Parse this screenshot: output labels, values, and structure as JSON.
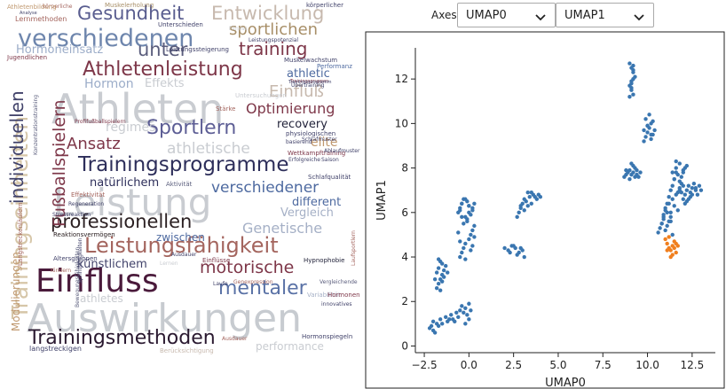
{
  "word_cloud": {
    "words": [
      "Auswirkungen",
      "Athleten",
      "Leistung",
      "Einfluss",
      "Trainingseinheiten",
      "verschiedenen",
      "Trainingsprogramme",
      "Leistungsfähigkeit",
      "Trainingsmethoden",
      "professionellen",
      "Sportlern",
      "Athletenleistung",
      "Gesundheit",
      "Entwicklung",
      "Fußballspielern",
      "individuellen",
      "mentaler",
      "motorische",
      "Optimierung",
      "Ansatz",
      "athletische",
      "verschiedener",
      "Genetische",
      "Einfluß",
      "training",
      "sportlichen",
      "unter",
      "Hormoneinsatz",
      "Hormon",
      "Effekts",
      "regimes",
      "recovery",
      "elite",
      "athletic",
      "natürlichem",
      "different",
      "Vergleich",
      "zwischen",
      "künstlichem",
      "Modulierungen",
      "Langstreckenläufern",
      "athletes",
      "performance",
      "langstreckigen",
      "Fitness",
      "Vergleichende",
      "Kindern",
      "Altersgruppen",
      "Hormonspiegeln",
      "Hypnophobie",
      "Laufsportlern",
      "Variabilität",
      "innovatives",
      "Genexpression",
      "Einflüsse",
      "Schlafqualität",
      "Wettkampftraining",
      "Leistungssteigerung",
      "Muskelwachstum",
      "Trainingsgruppen",
      "Reaktionsvermögen",
      "Stressreaktion",
      "Effektivität",
      "Aktivität",
      "Regeneration",
      "Konzentrationstraining",
      "Profifußballspielern",
      "Muskelerholung",
      "körperliche",
      "körperlicher",
      "Unterschieden",
      "Lernmethoden",
      "Analyse",
      "Jugendlichen",
      "Bewegungsfähigkeiten",
      "Berücksichtigung",
      "Sprintfähigkeiten",
      "Ausdauer",
      "Leistungspotenzial",
      "Untersuchungen",
      "Übertraining",
      "Erfolgreiche",
      "Saison",
      "Ablaufmuster",
      "Schlafmuster",
      "physiologischen",
      "basierend",
      "Hormonen",
      "Stärke",
      "Athletenbildung",
      "Performanz",
      "Laufe",
      "Lernen",
      "Ausdauer",
      "Trainingsprogramm"
    ]
  },
  "controls": {
    "axes_label": "Axes",
    "x_axis_value": "UMAP0",
    "y_axis_value": "UMAP1",
    "chevron_icon": "chevron-down-icon"
  },
  "chart_data": {
    "type": "scatter",
    "title": "",
    "xlabel": "UMAP0",
    "ylabel": "UMAP1",
    "xlim": [
      -3.0,
      13.8
    ],
    "ylim": [
      -0.3,
      13.4
    ],
    "xticks": [
      "−2.5",
      "0.0",
      "2.5",
      "5.0",
      "7.5",
      "10.0",
      "12.5"
    ],
    "yticks": [
      "0",
      "2",
      "4",
      "6",
      "8",
      "10",
      "12"
    ],
    "grid": false,
    "colors": {
      "blue": "#3a76b0",
      "orange": "#f07f1e"
    },
    "series": [
      {
        "color": "blue",
        "x": [
          -2.2,
          -2.0,
          -2.1,
          -1.9,
          -1.7,
          -1.8,
          -2.0,
          -1.6,
          -1.5,
          -1.3,
          -1.2,
          -1.0,
          -0.9,
          -0.7,
          -0.5,
          -0.4,
          -0.3,
          -0.2,
          -0.1,
          0.0,
          0.1,
          -0.6,
          -0.8,
          -1.1,
          -0.2,
          0.0,
          -1.8,
          -1.7,
          -1.6,
          -1.5,
          -1.4,
          -1.3,
          -1.6,
          -1.8,
          -1.7,
          -1.5,
          -1.4,
          -1.2,
          -1.6,
          -1.5,
          -1.7,
          -1.9,
          -0.5,
          -0.4,
          -0.3,
          -0.2,
          0.0,
          0.1,
          0.2,
          0.3,
          -0.1,
          -0.2,
          0.0,
          0.2,
          -0.4,
          -0.3,
          -0.6,
          -0.5,
          0.1,
          0.3,
          -0.1,
          0.0,
          -0.2,
          0.2,
          -0.6,
          -0.5,
          -0.4,
          -0.3,
          -0.1,
          0.0,
          0.2,
          0.3,
          -0.4,
          -0.2,
          0.1,
          -0.5,
          2.0,
          2.2,
          2.4,
          2.6,
          2.8,
          3.0,
          3.1,
          2.7,
          2.5,
          2.3,
          2.9,
          2.7,
          2.8,
          2.9,
          3.0,
          3.1,
          3.2,
          3.3,
          3.4,
          3.5,
          3.6,
          3.7,
          3.8,
          3.9,
          4.0,
          3.1,
          3.3,
          3.5,
          2.9,
          8.7,
          8.8,
          8.9,
          9.0,
          9.1,
          9.2,
          9.3,
          9.4,
          9.5,
          9.6,
          9.0,
          9.2,
          9.4,
          8.8,
          9.1,
          9.3,
          9.0,
          9.1,
          9.1,
          9.2,
          9.2,
          9.1,
          9.0,
          9.2,
          9.1,
          9.3,
          9.2,
          9.1,
          9.2,
          9.0,
          9.8,
          9.9,
          10.0,
          10.1,
          10.2,
          10.3,
          10.4,
          9.9,
          10.0,
          10.2,
          10.1,
          9.8,
          10.3,
          10.0,
          10.2,
          10.8,
          10.9,
          11.0,
          11.1,
          11.2,
          11.3,
          11.4,
          11.5,
          11.6,
          11.7,
          11.8,
          11.9,
          12.0,
          12.1,
          12.2,
          12.3,
          12.4,
          12.5,
          12.6,
          12.7,
          12.8,
          12.9,
          13.0,
          11.0,
          11.2,
          11.4,
          11.6,
          11.8,
          12.0,
          12.2,
          12.4,
          11.3,
          11.5,
          11.7,
          11.9,
          12.1,
          12.3,
          12.5,
          12.7,
          10.6,
          10.7,
          10.8,
          10.9,
          11.0,
          11.1,
          11.2,
          11.3,
          11.4,
          10.9,
          11.1,
          11.3,
          11.4,
          11.6,
          11.8,
          12.0,
          12.2,
          11.5,
          11.7,
          11.9,
          12.1,
          11.6,
          11.8,
          12.0
        ],
        "y": [
          0.8,
          0.7,
          0.9,
          0.6,
          0.9,
          1.0,
          1.1,
          1.2,
          1.0,
          1.3,
          1.1,
          1.4,
          1.2,
          1.5,
          1.6,
          1.8,
          1.5,
          1.7,
          1.4,
          1.9,
          1.6,
          1.3,
          1.1,
          1.2,
          1.0,
          1.2,
          2.6,
          2.8,
          3.0,
          3.2,
          3.4,
          3.6,
          3.8,
          3.3,
          3.5,
          2.9,
          3.1,
          3.3,
          2.5,
          3.7,
          3.9,
          3.0,
          4.0,
          4.2,
          4.4,
          4.6,
          4.8,
          5.0,
          5.2,
          5.4,
          5.6,
          5.8,
          6.0,
          6.2,
          6.4,
          5.5,
          5.1,
          4.7,
          4.3,
          4.9,
          5.7,
          6.3,
          3.9,
          4.5,
          6.0,
          6.2,
          6.4,
          6.6,
          6.5,
          6.3,
          6.1,
          6.4,
          5.8,
          6.6,
          5.9,
          6.1,
          4.4,
          4.3,
          4.5,
          4.4,
          4.2,
          4.3,
          4.0,
          4.1,
          4.5,
          4.2,
          4.4,
          5.8,
          6.0,
          6.2,
          6.4,
          6.6,
          6.5,
          6.3,
          6.7,
          6.9,
          6.8,
          6.7,
          6.6,
          6.8,
          6.7,
          6.1,
          6.9,
          6.4,
          6.3,
          7.6,
          7.7,
          7.8,
          7.9,
          7.7,
          7.8,
          8.0,
          7.9,
          7.6,
          7.8,
          7.5,
          8.1,
          7.7,
          7.9,
          8.2,
          7.6,
          11.2,
          11.5,
          11.8,
          12.0,
          12.3,
          12.5,
          12.7,
          11.3,
          11.6,
          12.1,
          12.4,
          11.9,
          12.6,
          11.7,
          9.2,
          9.4,
          9.6,
          9.8,
          10.0,
          9.5,
          9.7,
          10.2,
          9.9,
          9.3,
          10.4,
          9.7,
          10.1,
          9.9,
          9.5,
          5.5,
          5.8,
          6.1,
          6.4,
          6.7,
          7.0,
          7.2,
          7.5,
          7.8,
          6.9,
          7.1,
          7.3,
          6.6,
          6.8,
          7.0,
          7.2,
          6.9,
          7.1,
          7.3,
          7.0,
          6.8,
          7.2,
          7.0,
          6.2,
          6.4,
          6.6,
          6.8,
          7.0,
          7.2,
          6.5,
          6.7,
          6.0,
          6.3,
          6.1,
          6.9,
          6.4,
          6.6,
          6.8,
          7.1,
          5.1,
          5.3,
          5.5,
          5.7,
          5.2,
          5.4,
          5.6,
          5.8,
          5.0,
          5.9,
          6.0,
          5.6,
          7.8,
          8.0,
          8.2,
          7.9,
          8.1,
          7.5,
          7.7,
          7.6,
          8.0,
          8.3,
          7.4,
          7.8
        ]
      },
      {
        "color": "orange",
        "x": [
          11.0,
          11.1,
          11.2,
          11.3,
          11.4,
          11.5,
          11.6,
          11.7,
          11.2,
          11.4,
          11.6,
          11.3,
          11.5,
          11.1
        ],
        "y": [
          4.8,
          4.6,
          4.4,
          4.3,
          4.5,
          4.7,
          4.2,
          4.5,
          4.9,
          4.1,
          4.6,
          4.0,
          4.4,
          4.3
        ]
      }
    ]
  }
}
